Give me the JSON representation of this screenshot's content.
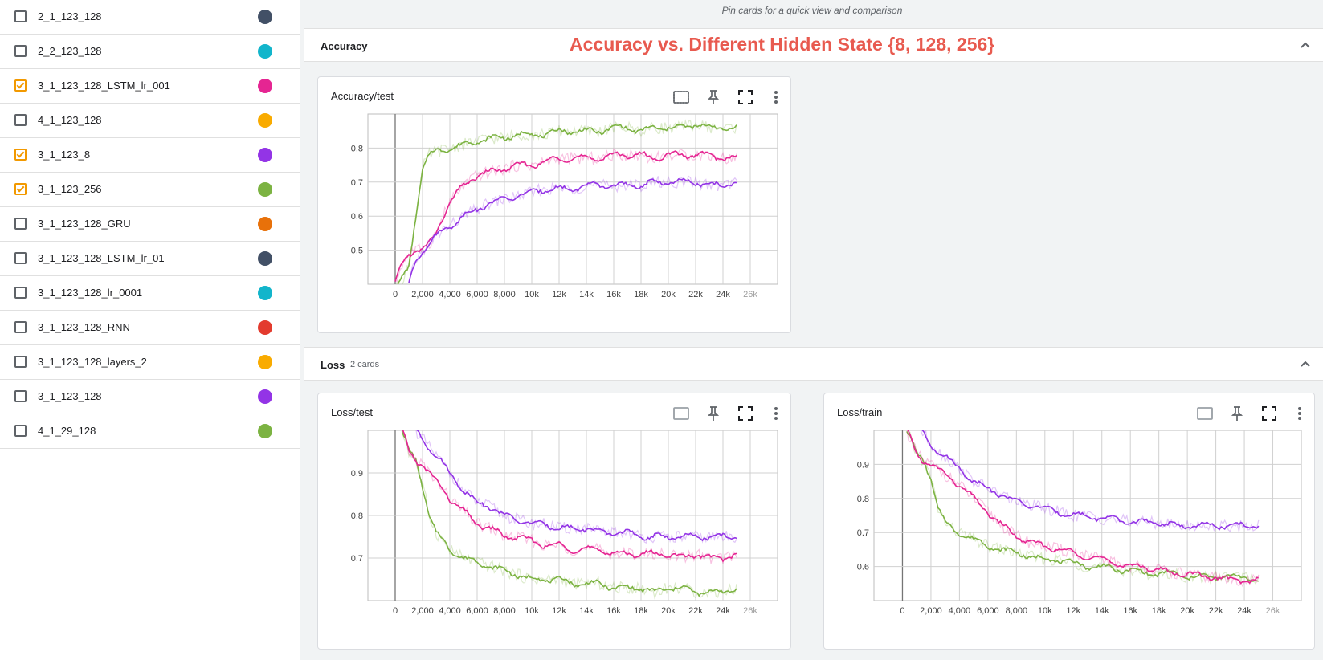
{
  "runs": [
    {
      "label": "2_1_123_128",
      "checked": false,
      "color": "#425066"
    },
    {
      "label": "2_2_123_128",
      "checked": false,
      "color": "#12b5cb"
    },
    {
      "label": "3_1_123_128_LSTM_lr_001",
      "checked": true,
      "color": "#e52592"
    },
    {
      "label": "4_1_123_128",
      "checked": false,
      "color": "#f9ab00"
    },
    {
      "label": "3_1_123_8",
      "checked": true,
      "color": "#9334e6"
    },
    {
      "label": "3_1_123_256",
      "checked": true,
      "color": "#7cb342"
    },
    {
      "label": "3_1_123_128_GRU",
      "checked": false,
      "color": "#e8710a"
    },
    {
      "label": "3_1_123_128_LSTM_lr_01",
      "checked": false,
      "color": "#425066"
    },
    {
      "label": "3_1_123_128_lr_0001",
      "checked": false,
      "color": "#12b5cb"
    },
    {
      "label": "3_1_123_128_RNN",
      "checked": false,
      "color": "#e33b2e"
    },
    {
      "label": "3_1_123_128_layers_2",
      "checked": false,
      "color": "#f9ab00"
    },
    {
      "label": "3_1_123_128",
      "checked": false,
      "color": "#9334e6"
    },
    {
      "label": "4_1_29_128",
      "checked": false,
      "color": "#7cb342"
    }
  ],
  "main": {
    "pin_hint": "Pin cards for a quick view and comparison",
    "groups": {
      "accuracy": {
        "title": "Accuracy",
        "annotation": "Accuracy vs. Different Hidden State {8, 128, 256}"
      },
      "loss": {
        "title": "Loss",
        "count": "2 cards"
      }
    }
  },
  "cards": {
    "acc_test": {
      "title": "Accuracy/test"
    },
    "loss_test": {
      "title": "Loss/test"
    },
    "loss_train": {
      "title": "Loss/train"
    }
  },
  "chart_data": [
    {
      "id": "acc_test",
      "type": "line",
      "title": "Accuracy/test",
      "xlim": [
        -2000,
        28000
      ],
      "ylim": [
        0.4,
        0.9
      ],
      "xticks": [
        0,
        2000,
        4000,
        6000,
        8000,
        10000,
        12000,
        14000,
        16000,
        18000,
        20000,
        22000,
        24000,
        26000
      ],
      "xtick_labels": [
        "0",
        "2,000",
        "4,000",
        "6,000",
        "8,000",
        "10k",
        "12k",
        "14k",
        "16k",
        "18k",
        "20k",
        "22k",
        "24k",
        "26k"
      ],
      "yticks": [
        0.5,
        0.6,
        0.7,
        0.8
      ],
      "ytick_labels": [
        "0.5",
        "0.6",
        "0.7",
        "0.8"
      ],
      "grid": true,
      "series": [
        {
          "run": "3_1_123_256",
          "color": "#7cb342",
          "x": [
            0,
            1000,
            1500,
            2000,
            2500,
            3000,
            4000,
            5000,
            6000,
            7000,
            8000,
            9000,
            10000,
            11000,
            12000,
            13000,
            14000,
            15000,
            16000,
            17000,
            18000,
            19000,
            20000,
            21000,
            22000,
            23000,
            24000,
            25000
          ],
          "y": [
            0.38,
            0.45,
            0.6,
            0.74,
            0.78,
            0.79,
            0.8,
            0.81,
            0.82,
            0.83,
            0.83,
            0.84,
            0.84,
            0.84,
            0.85,
            0.85,
            0.85,
            0.85,
            0.86,
            0.86,
            0.85,
            0.86,
            0.86,
            0.86,
            0.87,
            0.86,
            0.86,
            0.86
          ]
        },
        {
          "run": "3_1_123_128_LSTM_lr_001",
          "color": "#e52592",
          "x": [
            0,
            500,
            1000,
            1500,
            2000,
            2500,
            3000,
            3500,
            4000,
            5000,
            6000,
            7000,
            8000,
            9000,
            10000,
            11000,
            12000,
            13000,
            14000,
            15000,
            16000,
            17000,
            18000,
            19000,
            20000,
            21000,
            22000,
            23000,
            24000,
            25000
          ],
          "y": [
            0.4,
            0.46,
            0.49,
            0.5,
            0.5,
            0.52,
            0.55,
            0.6,
            0.64,
            0.69,
            0.72,
            0.73,
            0.74,
            0.75,
            0.75,
            0.76,
            0.77,
            0.77,
            0.77,
            0.77,
            0.78,
            0.78,
            0.78,
            0.77,
            0.78,
            0.78,
            0.78,
            0.78,
            0.77,
            0.77
          ]
        },
        {
          "run": "3_1_123_8",
          "color": "#9334e6",
          "x": [
            1000,
            1500,
            2000,
            2500,
            3000,
            3500,
            4000,
            5000,
            6000,
            7000,
            8000,
            9000,
            10000,
            11000,
            12000,
            13000,
            14000,
            15000,
            16000,
            17000,
            18000,
            19000,
            20000,
            21000,
            22000,
            23000,
            24000,
            25000
          ],
          "y": [
            0.4,
            0.47,
            0.5,
            0.52,
            0.54,
            0.56,
            0.57,
            0.6,
            0.62,
            0.64,
            0.65,
            0.66,
            0.67,
            0.68,
            0.68,
            0.68,
            0.69,
            0.69,
            0.69,
            0.69,
            0.69,
            0.7,
            0.7,
            0.7,
            0.7,
            0.69,
            0.69,
            0.7
          ]
        }
      ]
    },
    {
      "id": "loss_test",
      "type": "line",
      "title": "Loss/test",
      "xlim": [
        -2000,
        28000
      ],
      "ylim": [
        0.6,
        1.0
      ],
      "xticks": [
        0,
        2000,
        4000,
        6000,
        8000,
        10000,
        12000,
        14000,
        16000,
        18000,
        20000,
        22000,
        24000,
        26000
      ],
      "xtick_labels": [
        "0",
        "2,000",
        "4,000",
        "6,000",
        "8,000",
        "10k",
        "12k",
        "14k",
        "16k",
        "18k",
        "20k",
        "22k",
        "24k",
        "26k"
      ],
      "yticks": [
        0.7,
        0.8,
        0.9
      ],
      "ytick_labels": [
        "0.7",
        "0.8",
        "0.9"
      ],
      "grid": true,
      "series": [
        {
          "run": "3_1_123_256",
          "color": "#7cb342",
          "x": [
            500,
            1000,
            1500,
            2000,
            2500,
            3000,
            3500,
            4000,
            5000,
            6000,
            7000,
            8000,
            9000,
            10000,
            11000,
            12000,
            13000,
            14000,
            15000,
            16000,
            17000,
            18000,
            19000,
            20000,
            21000,
            22000,
            23000,
            24000,
            25000
          ],
          "y": [
            1.0,
            0.95,
            0.93,
            0.87,
            0.8,
            0.76,
            0.74,
            0.72,
            0.7,
            0.69,
            0.68,
            0.67,
            0.66,
            0.65,
            0.65,
            0.65,
            0.64,
            0.64,
            0.64,
            0.63,
            0.63,
            0.63,
            0.62,
            0.63,
            0.63,
            0.62,
            0.62,
            0.62,
            0.63
          ]
        },
        {
          "run": "3_1_123_128_LSTM_lr_001",
          "color": "#e52592",
          "x": [
            500,
            1000,
            1500,
            2000,
            2500,
            3000,
            4000,
            5000,
            6000,
            7000,
            8000,
            9000,
            10000,
            11000,
            12000,
            13000,
            14000,
            15000,
            16000,
            17000,
            18000,
            19000,
            20000,
            21000,
            22000,
            23000,
            24000,
            25000
          ],
          "y": [
            1.0,
            0.95,
            0.93,
            0.92,
            0.9,
            0.88,
            0.84,
            0.81,
            0.78,
            0.77,
            0.75,
            0.75,
            0.74,
            0.73,
            0.73,
            0.72,
            0.72,
            0.72,
            0.71,
            0.71,
            0.71,
            0.71,
            0.71,
            0.7,
            0.71,
            0.7,
            0.7,
            0.71
          ]
        },
        {
          "run": "3_1_123_8",
          "color": "#9334e6",
          "x": [
            1500,
            2000,
            2500,
            3000,
            4000,
            5000,
            6000,
            7000,
            8000,
            9000,
            10000,
            11000,
            12000,
            13000,
            14000,
            15000,
            16000,
            17000,
            18000,
            19000,
            20000,
            21000,
            22000,
            23000,
            24000,
            25000
          ],
          "y": [
            1.0,
            0.98,
            0.96,
            0.94,
            0.9,
            0.86,
            0.83,
            0.82,
            0.8,
            0.79,
            0.78,
            0.78,
            0.77,
            0.77,
            0.77,
            0.76,
            0.76,
            0.76,
            0.75,
            0.75,
            0.75,
            0.75,
            0.75,
            0.75,
            0.75,
            0.75
          ]
        }
      ]
    },
    {
      "id": "loss_train",
      "type": "line",
      "title": "Loss/train",
      "xlim": [
        -2000,
        28000
      ],
      "ylim": [
        0.5,
        1.0
      ],
      "xticks": [
        0,
        2000,
        4000,
        6000,
        8000,
        10000,
        12000,
        14000,
        16000,
        18000,
        20000,
        22000,
        24000,
        26000
      ],
      "xtick_labels": [
        "0",
        "2,000",
        "4,000",
        "6,000",
        "8,000",
        "10k",
        "12k",
        "14k",
        "16k",
        "18k",
        "20k",
        "22k",
        "24k",
        "26k"
      ],
      "yticks": [
        0.6,
        0.7,
        0.8,
        0.9
      ],
      "ytick_labels": [
        "0.6",
        "0.7",
        "0.8",
        "0.9"
      ],
      "grid": true,
      "series": [
        {
          "run": "3_1_123_256",
          "color": "#7cb342",
          "x": [
            300,
            1000,
            1500,
            2000,
            2500,
            3000,
            3500,
            4000,
            5000,
            6000,
            7000,
            8000,
            9000,
            10000,
            11000,
            12000,
            13000,
            14000,
            15000,
            16000,
            17000,
            18000,
            19000,
            20000,
            21000,
            22000,
            23000,
            24000,
            25000
          ],
          "y": [
            1.0,
            0.93,
            0.91,
            0.86,
            0.77,
            0.73,
            0.71,
            0.7,
            0.68,
            0.66,
            0.65,
            0.64,
            0.63,
            0.62,
            0.62,
            0.61,
            0.6,
            0.6,
            0.59,
            0.59,
            0.58,
            0.58,
            0.58,
            0.57,
            0.57,
            0.57,
            0.57,
            0.57,
            0.56
          ]
        },
        {
          "run": "3_1_123_128_LSTM_lr_001",
          "color": "#e52592",
          "x": [
            300,
            1000,
            1500,
            2000,
            3000,
            4000,
            5000,
            6000,
            7000,
            8000,
            9000,
            10000,
            11000,
            12000,
            13000,
            14000,
            15000,
            16000,
            17000,
            18000,
            19000,
            20000,
            21000,
            22000,
            23000,
            24000,
            25000
          ],
          "y": [
            1.0,
            0.93,
            0.91,
            0.9,
            0.87,
            0.84,
            0.8,
            0.76,
            0.72,
            0.69,
            0.67,
            0.66,
            0.65,
            0.64,
            0.63,
            0.62,
            0.61,
            0.6,
            0.6,
            0.59,
            0.58,
            0.58,
            0.57,
            0.57,
            0.56,
            0.56,
            0.56
          ]
        },
        {
          "run": "3_1_123_8",
          "color": "#9334e6",
          "x": [
            1300,
            2000,
            3000,
            4000,
            5000,
            6000,
            7000,
            8000,
            9000,
            10000,
            11000,
            12000,
            13000,
            14000,
            15000,
            16000,
            17000,
            18000,
            19000,
            20000,
            21000,
            22000,
            23000,
            24000,
            25000
          ],
          "y": [
            1.0,
            0.96,
            0.92,
            0.89,
            0.85,
            0.83,
            0.81,
            0.79,
            0.78,
            0.77,
            0.76,
            0.75,
            0.75,
            0.74,
            0.74,
            0.73,
            0.73,
            0.73,
            0.72,
            0.72,
            0.72,
            0.72,
            0.72,
            0.72,
            0.72
          ]
        }
      ]
    }
  ]
}
